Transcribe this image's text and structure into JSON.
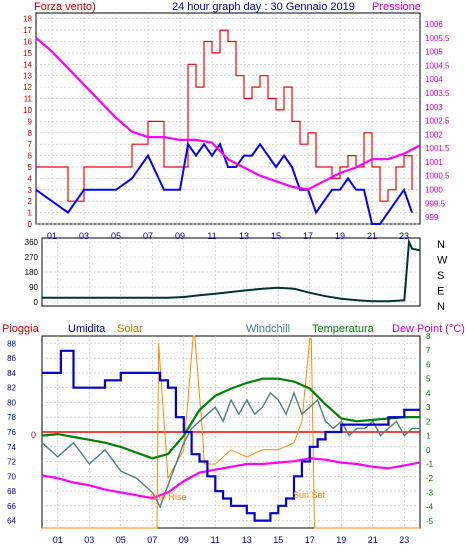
{
  "header": {
    "left": "Forza vento)",
    "title": "24 hour graph day : 30 Gennaio 2019",
    "right": "Pressione"
  },
  "chart_data": [
    {
      "type": "line",
      "name": "wind-pressure",
      "left_label": "Forza vento)",
      "right_label": "Pressione",
      "left_ticks": [
        "0",
        "1",
        "2",
        "3",
        "4",
        "5",
        "6",
        "7",
        "8",
        "9",
        "10",
        "11",
        "12",
        "13",
        "14",
        "15",
        "16",
        "17",
        "18"
      ],
      "right_ticks": [
        "999",
        "999.5",
        "1000",
        "1000.5",
        "1001",
        "1001.5",
        "1002",
        "1002.5",
        "1003",
        "1003.5",
        "1004",
        "1004.5",
        "1005",
        "1005.5",
        "1006"
      ],
      "x_ticks": [
        "01",
        "03",
        "05",
        "07",
        "09",
        "11",
        "13",
        "15",
        "17",
        "19",
        "21",
        "23"
      ],
      "ylim_left": [
        0,
        18.5
      ],
      "ylim_right": [
        998.75,
        1006.4
      ],
      "xlim": [
        0,
        24
      ],
      "colors": {
        "gust": "#ff0000",
        "wind": "#0000ff",
        "pressure": "#ff00ff"
      },
      "series": [
        {
          "key": "gust",
          "x": [
            0,
            1,
            2,
            3,
            4,
            5,
            6,
            7,
            8,
            9,
            9.5,
            10,
            10.5,
            11,
            11.5,
            12,
            12.5,
            13,
            13.5,
            14,
            14.5,
            15,
            15.5,
            16,
            16.5,
            17,
            17.5,
            18,
            18.5,
            19,
            19.5,
            20,
            20.5,
            21,
            21.5,
            22,
            22.5,
            23,
            23.5
          ],
          "y": [
            5,
            5,
            2,
            5,
            5,
            5,
            7,
            9,
            5,
            5,
            14,
            12,
            16,
            15,
            17,
            16,
            13,
            11,
            12,
            13,
            11,
            10,
            12,
            9,
            7,
            8,
            5,
            5,
            4,
            5,
            6,
            5,
            8,
            5,
            2,
            3,
            5,
            6,
            3
          ]
        },
        {
          "key": "wind",
          "x": [
            0,
            1,
            2,
            3,
            4,
            5,
            6,
            7,
            8,
            9,
            9.5,
            10,
            10.5,
            11,
            11.5,
            12,
            12.5,
            13,
            13.5,
            14,
            14.5,
            15,
            15.5,
            16,
            16.5,
            17,
            17.5,
            18,
            18.5,
            19,
            19.5,
            20,
            20.5,
            21,
            21.5,
            22,
            22.5,
            23,
            23.5
          ],
          "y": [
            3,
            2,
            1,
            3,
            3,
            3,
            4,
            6,
            3,
            3,
            7,
            6,
            7,
            6,
            7,
            5,
            5,
            6,
            6,
            7,
            6,
            5,
            6,
            5,
            3,
            3,
            1,
            2,
            3,
            3,
            4,
            3,
            3,
            0,
            0,
            1,
            2,
            3,
            1
          ]
        },
        {
          "key": "pressure",
          "x": [
            0,
            1,
            2,
            3,
            4,
            5,
            6,
            7,
            8,
            9,
            10,
            11,
            12,
            13,
            14,
            15,
            16,
            17,
            18,
            19,
            20,
            21,
            22,
            23,
            24
          ],
          "y": [
            1005.5,
            1005.0,
            1004.4,
            1003.8,
            1003.2,
            1002.6,
            1002.1,
            1001.9,
            1001.9,
            1001.8,
            1001.8,
            1001.7,
            1001.1,
            1000.8,
            1000.5,
            1000.3,
            1000.1,
            1000.0,
            1000.3,
            1000.6,
            1000.8,
            1001.1,
            1001.1,
            1001.3,
            1001.6
          ]
        }
      ]
    },
    {
      "type": "line",
      "name": "wind-direction",
      "left_ticks": [
        "0",
        "90",
        "180",
        "270",
        "360"
      ],
      "right_labels": [
        "N",
        "W",
        "S",
        "E",
        "N"
      ],
      "ylim": [
        0,
        360
      ],
      "xlim": [
        0,
        24
      ],
      "colors": {
        "direction": "#003333"
      },
      "series": [
        {
          "key": "direction",
          "x": [
            0,
            2,
            4,
            6,
            8,
            9,
            10,
            11,
            12,
            13,
            14,
            15,
            16,
            17,
            18,
            19,
            20,
            21,
            22,
            23,
            23.3,
            23.5,
            24
          ],
          "y": [
            25,
            25,
            25,
            25,
            25,
            30,
            40,
            50,
            60,
            70,
            80,
            85,
            80,
            55,
            35,
            20,
            10,
            5,
            5,
            10,
            360,
            320,
            310
          ]
        }
      ]
    },
    {
      "type": "line",
      "name": "temp-humidity",
      "labels": {
        "rain": "Pioggia",
        "humidity": "Umidita",
        "solar": "Solar",
        "windchill": "Windchill",
        "temperature": "Temperatura",
        "dewpoint": "Dew Point (°C)"
      },
      "left_ticks": [
        "64",
        "66",
        "68",
        "70",
        "72",
        "74",
        "76",
        "78",
        "80",
        "82",
        "84",
        "86",
        "88"
      ],
      "right_ticks": [
        "-5",
        "-4",
        "-3",
        "-2",
        "-1",
        "0",
        "1",
        "2",
        "3",
        "4",
        "5",
        "6",
        "7",
        "8"
      ],
      "rain_zero": "0",
      "annotations": [
        "Sun Rise",
        "Sun Set"
      ],
      "x_ticks": [
        "01",
        "03",
        "05",
        "07",
        "09",
        "11",
        "13",
        "15",
        "17",
        "19",
        "21",
        "23"
      ],
      "ylim_left": [
        63,
        89
      ],
      "ylim_right": [
        -5.5,
        8
      ],
      "xlim": [
        0,
        24
      ],
      "colors": {
        "humidity": "#0000cc",
        "solar": "#ff8800",
        "windchill": "#4d8080",
        "temperature": "#008000",
        "dewpoint": "#ff00ff",
        "rain": "#ff0000",
        "rain_label": "#cc0000"
      },
      "series": [
        {
          "key": "humidity",
          "x": [
            0,
            1,
            1.2,
            2,
            3,
            4,
            5,
            6,
            7,
            7.5,
            8,
            8.5,
            9,
            9.5,
            10,
            10.5,
            11,
            11.5,
            12,
            12.5,
            13,
            13.5,
            14,
            14.5,
            15,
            15.5,
            16,
            16.5,
            17,
            17.5,
            18,
            18.5,
            19,
            20,
            21,
            22,
            23,
            24
          ],
          "y": [
            84,
            84,
            87,
            82,
            82,
            83,
            84,
            84,
            84,
            83,
            82,
            78,
            76,
            73,
            72,
            70,
            68,
            67,
            66,
            66,
            65,
            64,
            64,
            65,
            66,
            67,
            70,
            72,
            74,
            75,
            76,
            76,
            77,
            77,
            77,
            78,
            79,
            79
          ]
        },
        {
          "key": "temperature",
          "x": [
            0,
            1,
            2,
            3,
            4,
            5,
            6,
            7,
            8,
            9,
            10,
            11,
            12,
            13,
            14,
            15,
            16,
            17,
            18,
            19,
            20,
            21,
            22,
            23,
            24
          ],
          "y": [
            1.0,
            1.1,
            0.9,
            0.7,
            0.5,
            0.2,
            -0.2,
            -0.6,
            -0.3,
            1.0,
            2.8,
            3.8,
            4.3,
            4.7,
            5.0,
            5.0,
            4.8,
            4.3,
            3.2,
            2.2,
            2.0,
            2.1,
            2.2,
            2.3,
            2.3
          ]
        },
        {
          "key": "windchill",
          "x": [
            0,
            1,
            2,
            3,
            4,
            5,
            6,
            7,
            7.5,
            8,
            8.5,
            9,
            9.5,
            10,
            10.5,
            11,
            11.5,
            12,
            12.5,
            13,
            13.5,
            14,
            14.5,
            15,
            15.5,
            16,
            16.5,
            17,
            17.5,
            18,
            18.5,
            19,
            19.5,
            20,
            20.5,
            21,
            21.5,
            22,
            22.5,
            23,
            23.5,
            24
          ],
          "y": [
            0.5,
            -0.5,
            0.5,
            -1,
            0,
            -1.5,
            -2,
            -3,
            -4,
            -2.5,
            -1,
            0.5,
            1.5,
            2,
            2.5,
            3,
            2,
            3.5,
            2.5,
            3.5,
            2.5,
            3,
            4,
            3.5,
            2.5,
            4,
            2.5,
            3,
            3.5,
            2,
            1.5,
            2,
            1,
            1.5,
            1.5,
            2,
            1,
            1.5,
            2,
            1,
            1.5,
            1.5
          ]
        },
        {
          "key": "dewpoint",
          "x": [
            0,
            1,
            2,
            3,
            4,
            5,
            6,
            7,
            8,
            9,
            10,
            11,
            12,
            13,
            14,
            15,
            16,
            17,
            18,
            19,
            20,
            21,
            22,
            23,
            24
          ],
          "y": [
            -1.8,
            -2.0,
            -2.3,
            -2.5,
            -2.8,
            -3.0,
            -3.2,
            -3.4,
            -3.0,
            -2.2,
            -1.6,
            -1.4,
            -1.2,
            -1.0,
            -1.0,
            -0.9,
            -0.8,
            -0.6,
            -0.7,
            -0.9,
            -1.0,
            -1.2,
            -1.3,
            -1.1,
            -0.9
          ]
        },
        {
          "key": "solar",
          "x": [
            0,
            7.3,
            7.4,
            8,
            8.5,
            9,
            9.6,
            9.7,
            10.2,
            10.3,
            11,
            12,
            13,
            14,
            15,
            16,
            16.5,
            17,
            17.1,
            17.3,
            17.4,
            24
          ],
          "y": [
            -5.5,
            -5.5,
            7.5,
            -2,
            -1,
            0,
            8,
            8,
            1,
            -1,
            -1,
            0,
            -0.5,
            0,
            0,
            0.5,
            2,
            7.8,
            7.8,
            -5.5,
            -5.5,
            -5.5
          ]
        }
      ]
    }
  ]
}
